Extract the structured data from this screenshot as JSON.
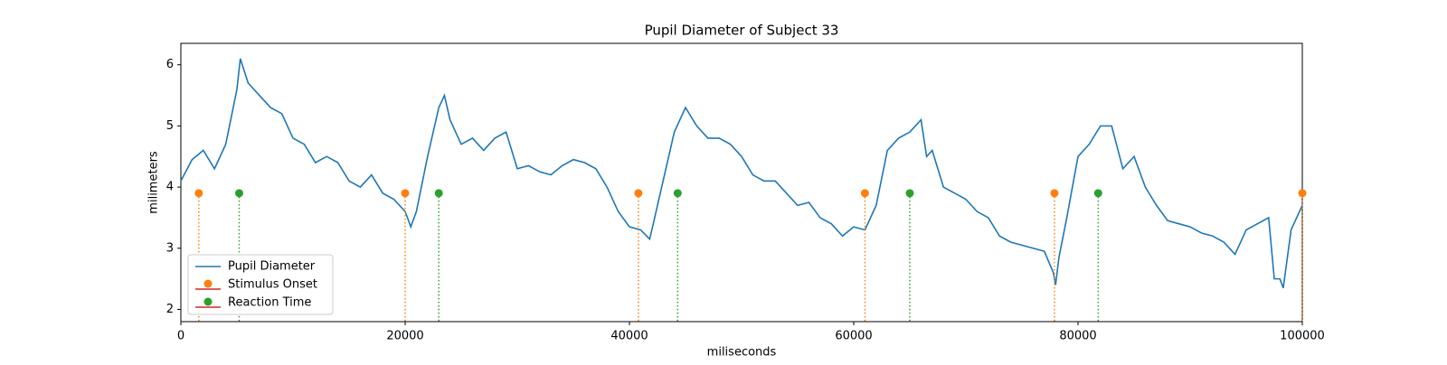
{
  "chart_data": {
    "type": "line",
    "title": "Pupil Diameter of Subject 33",
    "x_label": "miliseconds",
    "y_label": "milimeters",
    "xlim": [
      0,
      100000
    ],
    "ylim": [
      1.8,
      6.35
    ],
    "xticks": [
      0,
      20000,
      40000,
      60000,
      80000,
      100000
    ],
    "yticks": [
      2,
      3,
      4,
      5,
      6
    ],
    "legend": "lower left",
    "series": [
      {
        "name": "Pupil Diameter",
        "color": "#1f77b4",
        "kind": "line",
        "x": [
          0,
          1000,
          2000,
          3000,
          4000,
          5000,
          5300,
          6000,
          7000,
          8000,
          9000,
          10000,
          11000,
          12000,
          13000,
          14000,
          15000,
          16000,
          17000,
          18000,
          19000,
          20000,
          20500,
          21000,
          22000,
          23000,
          23500,
          24000,
          25000,
          26000,
          27000,
          28000,
          29000,
          30000,
          31000,
          32000,
          33000,
          34000,
          35000,
          36000,
          37000,
          38000,
          39000,
          40000,
          41000,
          41800,
          42000,
          43000,
          44000,
          45000,
          46000,
          47000,
          48000,
          49000,
          50000,
          51000,
          52000,
          53000,
          54000,
          55000,
          56000,
          57000,
          58000,
          59000,
          60000,
          61000,
          62000,
          63000,
          64000,
          65000,
          66000,
          66500,
          67000,
          68000,
          69000,
          70000,
          71000,
          72000,
          73000,
          74000,
          75000,
          76000,
          77000,
          77800,
          78000,
          78300,
          79000,
          80000,
          81000,
          82000,
          83000,
          84000,
          85000,
          86000,
          87000,
          88000,
          89000,
          90000,
          91000,
          92000,
          93000,
          94000,
          95000,
          96000,
          97000,
          97500,
          98000,
          98300,
          99000,
          100000
        ],
        "values": [
          4.1,
          4.45,
          4.6,
          4.3,
          4.7,
          5.6,
          6.1,
          5.7,
          5.5,
          5.3,
          5.2,
          4.8,
          4.7,
          4.4,
          4.5,
          4.4,
          4.1,
          4.0,
          4.2,
          3.9,
          3.8,
          3.6,
          3.35,
          3.6,
          4.5,
          5.3,
          5.5,
          5.1,
          4.7,
          4.8,
          4.6,
          4.8,
          4.9,
          4.3,
          4.35,
          4.25,
          4.2,
          4.35,
          4.45,
          4.4,
          4.3,
          4.0,
          3.6,
          3.35,
          3.3,
          3.15,
          3.3,
          4.1,
          4.9,
          5.3,
          5.0,
          4.8,
          4.8,
          4.7,
          4.5,
          4.2,
          4.1,
          4.1,
          3.9,
          3.7,
          3.75,
          3.5,
          3.4,
          3.2,
          3.35,
          3.3,
          3.7,
          4.6,
          4.8,
          4.9,
          5.1,
          4.5,
          4.6,
          4.0,
          3.9,
          3.8,
          3.6,
          3.5,
          3.2,
          3.1,
          3.05,
          3.0,
          2.95,
          2.6,
          2.4,
          2.85,
          3.5,
          4.5,
          4.7,
          5.0,
          5.0,
          4.3,
          4.5,
          4.0,
          3.7,
          3.45,
          3.4,
          3.35,
          3.25,
          3.2,
          3.1,
          2.9,
          3.3,
          3.4,
          3.5,
          2.5,
          2.5,
          2.35,
          3.3,
          3.7
        ]
      },
      {
        "name": "Stimulus Onset",
        "color": "#ff7f0e",
        "kind": "stem",
        "x": [
          1600,
          20000,
          40800,
          61000,
          77900,
          100000
        ],
        "values": [
          3.9,
          3.9,
          3.9,
          3.9,
          3.9,
          3.9
        ]
      },
      {
        "name": "Reaction Time",
        "color": "#2ca02c",
        "kind": "stem",
        "x": [
          5200,
          23000,
          44300,
          65000,
          81800
        ],
        "values": [
          3.9,
          3.9,
          3.9,
          3.9,
          3.9
        ]
      }
    ]
  }
}
